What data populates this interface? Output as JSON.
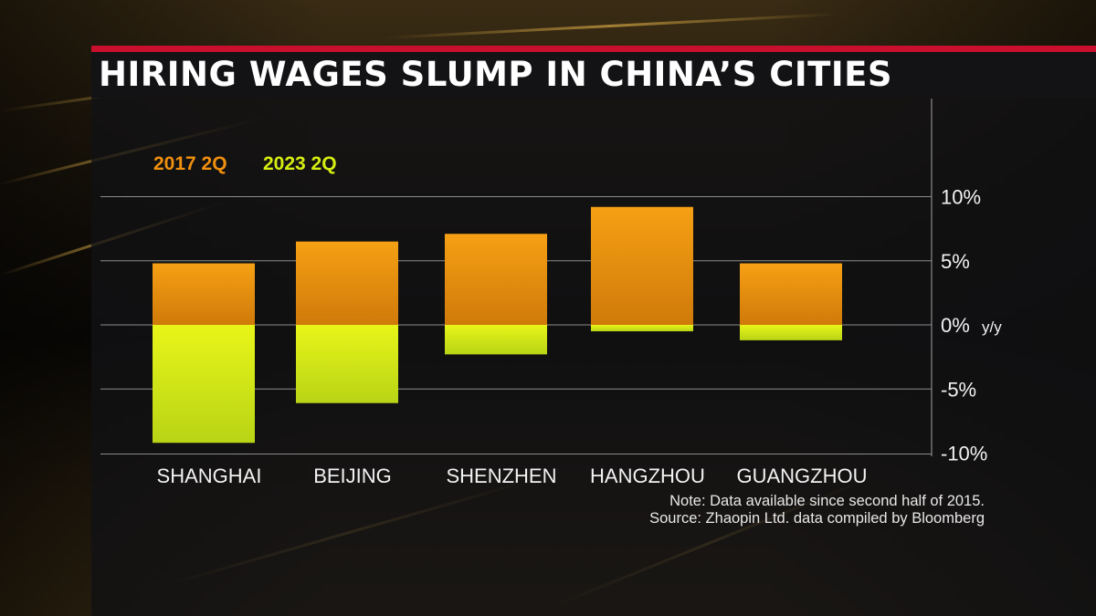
{
  "header": {
    "title": "HIRING WAGES SLUMP IN CHINA’S CITIES"
  },
  "colors": {
    "series_2017": "#f0900e",
    "series_2023": "#d6ee12",
    "accent_bar": "#c8102e"
  },
  "chart_data": {
    "type": "bar",
    "categories": [
      "SHANGHAI",
      "BEIJING",
      "SHENZHEN",
      "HANGZHOU",
      "GUANGZHOU"
    ],
    "series": [
      {
        "name": "2017 2Q",
        "values": [
          4.8,
          6.5,
          7.1,
          9.2,
          4.8
        ]
      },
      {
        "name": "2023 2Q",
        "values": [
          -9.2,
          -6.1,
          -2.3,
          -0.5,
          -1.2
        ]
      }
    ],
    "y_ticks": [
      10,
      5,
      0,
      -5,
      -10
    ],
    "y_tick_labels": [
      "10%",
      "5%",
      "0%",
      "-5%",
      "-10%"
    ],
    "ylim": [
      -10,
      10
    ],
    "ylabel": "y/y",
    "grid": true,
    "legend_position": "top-left",
    "note": "Note: Data available since second half of 2015.",
    "source": "Source: Zhaopin Ltd. data compiled by Bloomberg"
  }
}
